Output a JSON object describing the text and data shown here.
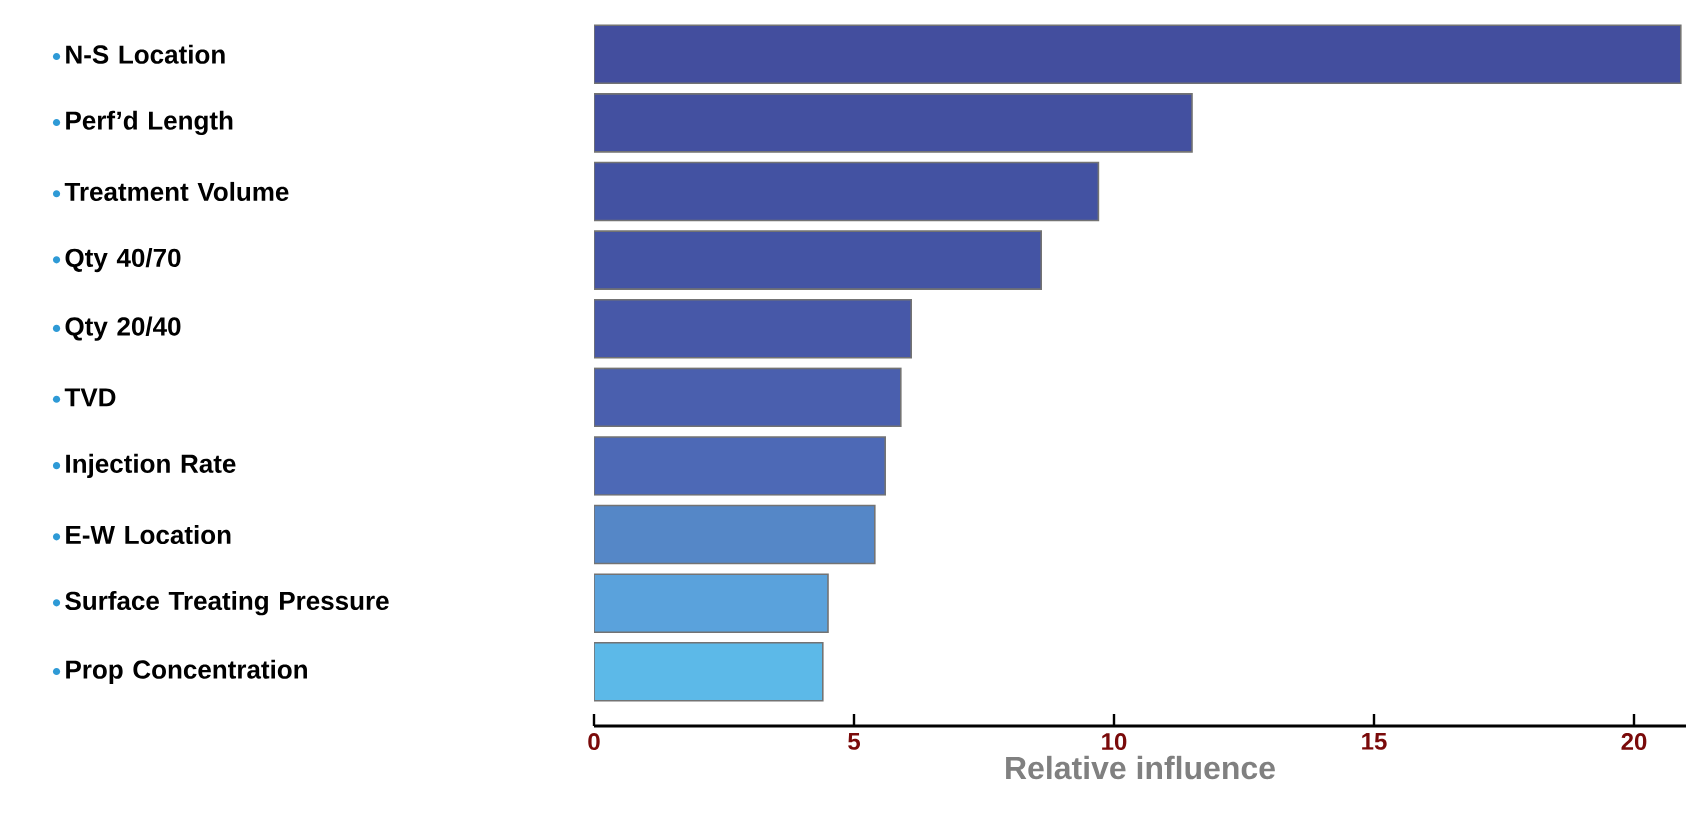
{
  "chart_data": {
    "type": "bar",
    "orientation": "horizontal",
    "xlabel": "Relative influence",
    "categories": [
      "N-S Location",
      "Perf’d Length",
      "Treatment Volume",
      "Qty 40/70",
      "Qty 20/40",
      "TVD",
      "Injection Rate",
      "E-W Location",
      "Surface Treating Pressure",
      "Prop Concentration"
    ],
    "values": [
      20.9,
      11.5,
      9.7,
      8.6,
      6.1,
      5.9,
      5.6,
      5.4,
      4.5,
      4.4
    ],
    "colors": [
      "#434e9e",
      "#4350a0",
      "#4352a2",
      "#4454a4",
      "#4758a8",
      "#4a5fae",
      "#4d69b6",
      "#5587c7",
      "#5aa2dc",
      "#5cb9e8"
    ],
    "xlim": [
      0,
      21
    ],
    "xticks": [
      0,
      5,
      10,
      15,
      20
    ]
  }
}
